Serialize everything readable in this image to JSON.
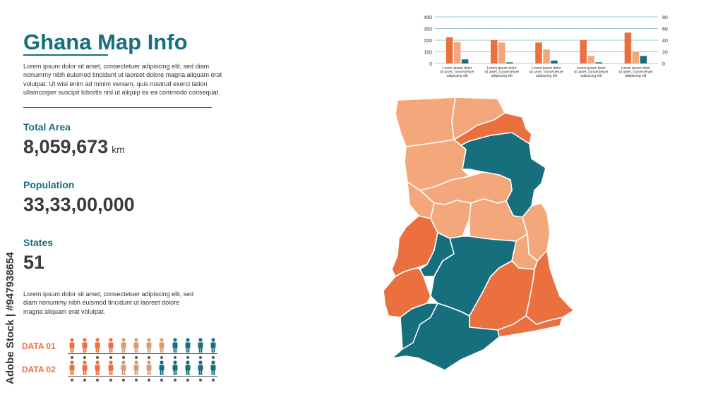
{
  "page": {
    "title": "Ghana Map Info",
    "intro": "Lorem ipsum dolor sit amet, consectetuer adipiscing elit, sed diam nonummy nibh euismod tincidunt ut laoreet dolore magna aliquam erat volutpat. Ut wisi enim ad minim veniam, quis nostrud exerci tation ullamcorper suscipit lobortis nisl ut aliquip ex ea commodo consequat.",
    "stats": {
      "area_label": "Total Area",
      "area_value": "8,059,673",
      "area_unit": "km",
      "population_label": "Population",
      "population_value": "33,33,00,000",
      "states_label": "States",
      "states_value": "51"
    },
    "note": "Lorem ipsum dolor sit amet, consectetuer adipiscing elit, sed diam nonummy nibh euismod tincidunt ut laoreet dolore magna aliquam erat volutpat.",
    "data_rows": [
      {
        "label": "DATA 01",
        "colors": [
          "#ea7040",
          "#ea7040",
          "#ea7040",
          "#ea7040",
          "#d99a77",
          "#d99a77",
          "#d99a77",
          "#d99a77",
          "#176f7d",
          "#176f7d",
          "#176f7d",
          "#176f7d"
        ]
      },
      {
        "label": "DATA 02",
        "colors": [
          "#ea7040",
          "#ea7040",
          "#ea7040",
          "#ea7040",
          "#d99a77",
          "#d99a77",
          "#d99a77",
          "#176f7d",
          "#176f7d",
          "#176f7d",
          "#176f7d",
          "#176f7d"
        ]
      }
    ],
    "watermark_side": "Adobe Stock | #947938654"
  },
  "colors": {
    "dark_orange": "#ea7040",
    "light_orange": "#f4a77a",
    "teal": "#176f7d"
  },
  "chart_data": {
    "type": "bar",
    "categories": [
      "Lorem ipsum dolor sit amet, consectetuer adipiscing elit",
      "Lorem ipsum dolor sit amet, consectetuer adipiscing elit",
      "Lorem ipsum dolor sit amet, consectetuer adipiscing elit",
      "Lorem ipsum dolor sit amet, consectetuer adipiscing elit",
      "Lorem ipsum dolor sit amet, consectetuer adipiscing elit"
    ],
    "series": [
      {
        "values": [
          225,
          200,
          180,
          200,
          265
        ],
        "color": "#ea7040",
        "axis": "left"
      },
      {
        "values": [
          185,
          180,
          120,
          65,
          100
        ],
        "color": "#f4a77a",
        "axis": "left"
      },
      {
        "values": [
          7,
          2,
          5,
          2,
          13
        ],
        "color": "#176f7d",
        "axis": "right"
      }
    ],
    "ylim_left": [
      0,
      400
    ],
    "ylim_right": [
      0,
      80
    ],
    "yticks_left": [
      "0",
      "100",
      "200",
      "300",
      "400"
    ],
    "yticks_right": [
      "0",
      "20",
      "40",
      "60",
      "80"
    ],
    "grid": true
  }
}
